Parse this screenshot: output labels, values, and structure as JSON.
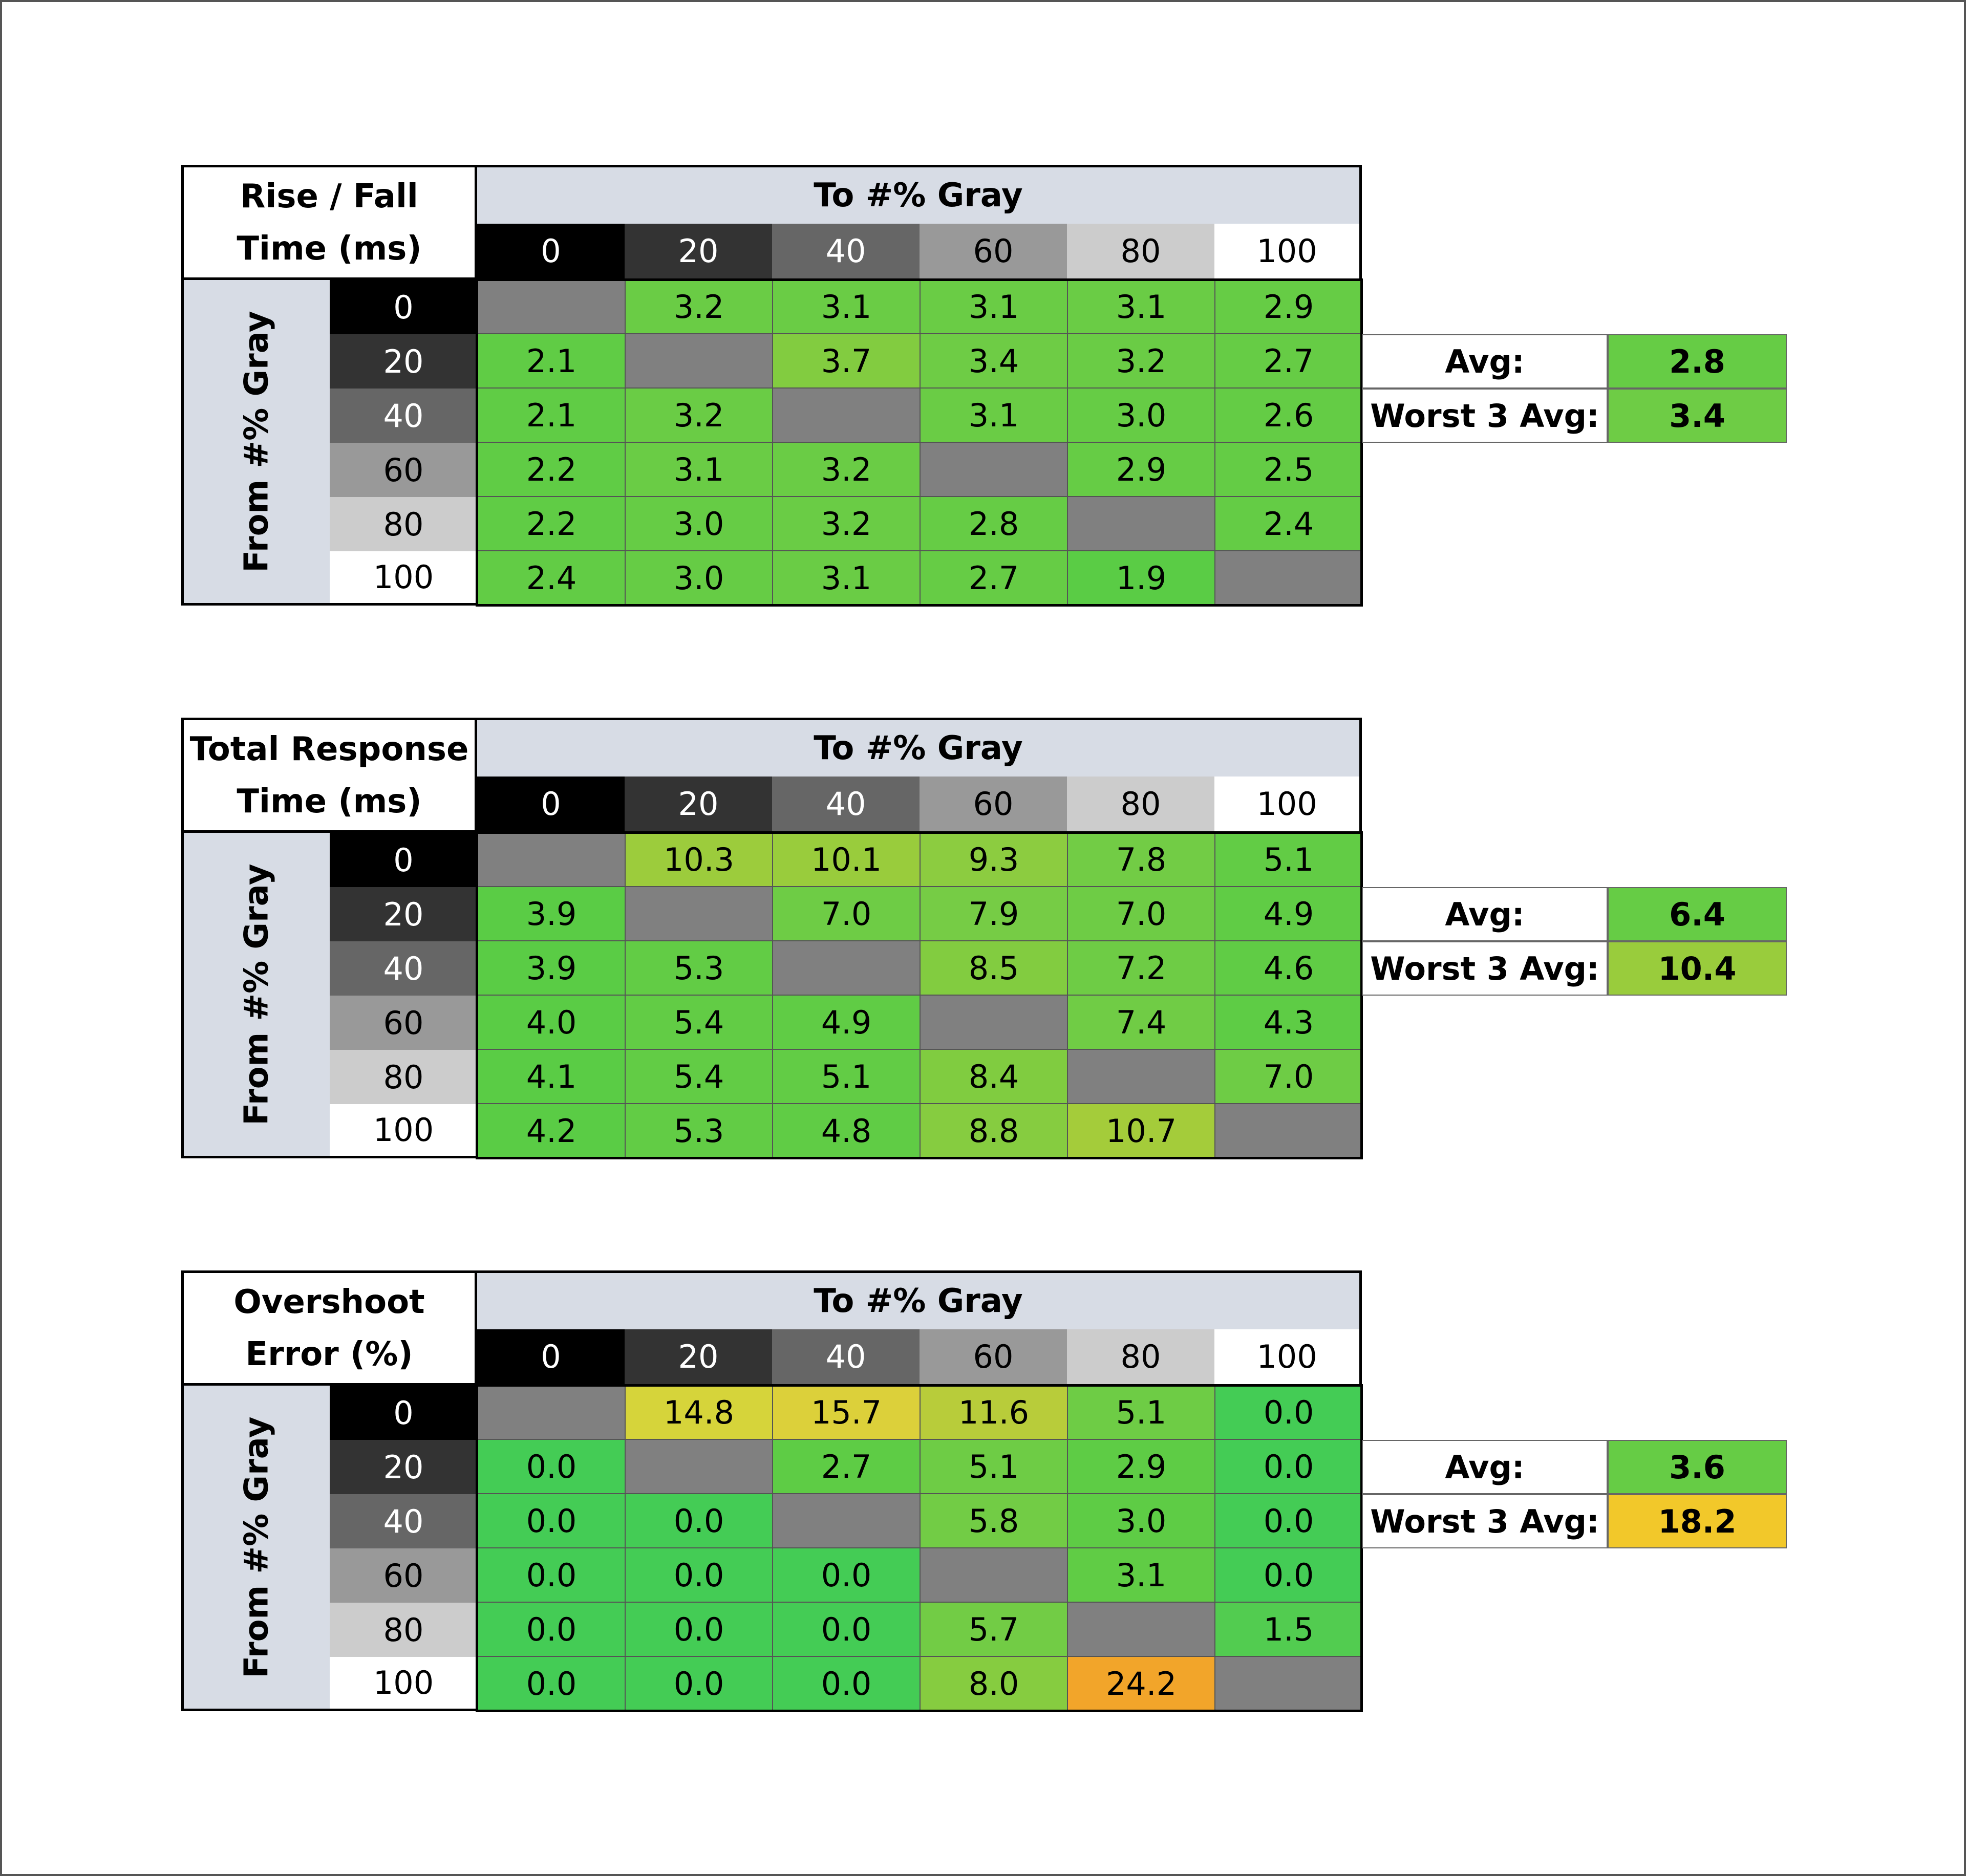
{
  "chart_data": [
    {
      "type": "table",
      "title_lines": [
        "Rise / Fall",
        "Time (ms)"
      ],
      "column_header": "To #% Gray",
      "row_header": "From #% Gray",
      "columns": [
        "0",
        "20",
        "40",
        "60",
        "80",
        "100"
      ],
      "rows": [
        "0",
        "20",
        "40",
        "60",
        "80",
        "100"
      ],
      "values": [
        [
          null,
          "3.2",
          "3.1",
          "3.1",
          "3.1",
          "2.9"
        ],
        [
          "2.1",
          null,
          "3.7",
          "3.4",
          "3.2",
          "2.7"
        ],
        [
          "2.1",
          "3.2",
          null,
          "3.1",
          "3.0",
          "2.6"
        ],
        [
          "2.2",
          "3.1",
          "3.2",
          null,
          "2.9",
          "2.5"
        ],
        [
          "2.2",
          "3.0",
          "3.2",
          "2.8",
          null,
          "2.4"
        ],
        [
          "2.4",
          "3.0",
          "3.1",
          "2.7",
          "1.9",
          null
        ]
      ],
      "colors": [
        [
          "#808080",
          "#6acc45",
          "#6acc45",
          "#6acc45",
          "#6acc45",
          "#66cc45"
        ],
        [
          "#60cc45",
          "#808080",
          "#82cc40",
          "#6ecc45",
          "#6acc45",
          "#66cc45"
        ],
        [
          "#60cc45",
          "#6acc45",
          "#808080",
          "#6acc45",
          "#66cc45",
          "#64cc45"
        ],
        [
          "#60cc45",
          "#6acc45",
          "#6acc45",
          "#808080",
          "#66cc45",
          "#64cc45"
        ],
        [
          "#60cc45",
          "#66cc45",
          "#6acc45",
          "#66cc45",
          "#808080",
          "#64cc45"
        ],
        [
          "#62cc45",
          "#66cc45",
          "#6acc45",
          "#66cc45",
          "#5acc45",
          "#808080"
        ]
      ],
      "summary": [
        {
          "label": "Avg:",
          "value": "2.8",
          "color": "#66cc45"
        },
        {
          "label": "Worst 3 Avg:",
          "value": "3.4",
          "color": "#6ecc45"
        }
      ]
    },
    {
      "type": "table",
      "title_lines": [
        "Total Response",
        "Time (ms)"
      ],
      "column_header": "To #% Gray",
      "row_header": "From #% Gray",
      "columns": [
        "0",
        "20",
        "40",
        "60",
        "80",
        "100"
      ],
      "rows": [
        "0",
        "20",
        "40",
        "60",
        "80",
        "100"
      ],
      "values": [
        [
          null,
          "10.3",
          "10.1",
          "9.3",
          "7.8",
          "5.1"
        ],
        [
          "3.9",
          null,
          "7.0",
          "7.9",
          "7.0",
          "4.9"
        ],
        [
          "3.9",
          "5.3",
          null,
          "8.5",
          "7.2",
          "4.6"
        ],
        [
          "4.0",
          "5.4",
          "4.9",
          null,
          "7.4",
          "4.3"
        ],
        [
          "4.1",
          "5.4",
          "5.1",
          "8.4",
          null,
          "7.0"
        ],
        [
          "4.2",
          "5.3",
          "4.8",
          "8.8",
          "10.7",
          null
        ]
      ],
      "colors": [
        [
          "#808080",
          "#9ccc3c",
          "#99cc3c",
          "#8ccc40",
          "#72cc45",
          "#62cc45"
        ],
        [
          "#5acc45",
          "#808080",
          "#6ecc45",
          "#76cc45",
          "#6ecc45",
          "#60cc45"
        ],
        [
          "#5acc45",
          "#62cc45",
          "#808080",
          "#82cc40",
          "#6ecc45",
          "#60cc45"
        ],
        [
          "#5acc45",
          "#62cc45",
          "#60cc45",
          "#808080",
          "#70cc45",
          "#5ecc45"
        ],
        [
          "#5acc45",
          "#62cc45",
          "#62cc45",
          "#80cc40",
          "#808080",
          "#6ecc45"
        ],
        [
          "#5acc45",
          "#62cc45",
          "#60cc45",
          "#86cc40",
          "#a4cc3a",
          "#808080"
        ]
      ],
      "summary": [
        {
          "label": "Avg:",
          "value": "6.4",
          "color": "#66cc45"
        },
        {
          "label": "Worst 3 Avg:",
          "value": "10.4",
          "color": "#99cc3c"
        }
      ]
    },
    {
      "type": "table",
      "title_lines": [
        "Overshoot",
        "Error (%)"
      ],
      "column_header": "To #% Gray",
      "row_header": "From #% Gray",
      "columns": [
        "0",
        "20",
        "40",
        "60",
        "80",
        "100"
      ],
      "rows": [
        "0",
        "20",
        "40",
        "60",
        "80",
        "100"
      ],
      "values": [
        [
          null,
          "14.8",
          "15.7",
          "11.6",
          "5.1",
          "0.0"
        ],
        [
          "0.0",
          null,
          "2.7",
          "5.1",
          "2.9",
          "0.0"
        ],
        [
          "0.0",
          "0.0",
          null,
          "5.8",
          "3.0",
          "0.0"
        ],
        [
          "0.0",
          "0.0",
          "0.0",
          null,
          "3.1",
          "0.0"
        ],
        [
          "0.0",
          "0.0",
          "0.0",
          "5.7",
          null,
          "1.5"
        ],
        [
          "0.0",
          "0.0",
          "0.0",
          "8.0",
          "24.2",
          null
        ]
      ],
      "colors": [
        [
          "#808080",
          "#d6d43a",
          "#dcd03a",
          "#b8cc3a",
          "#6ecc45",
          "#44cc55"
        ],
        [
          "#44cc55",
          "#808080",
          "#5ecc45",
          "#6ecc45",
          "#5ecc45",
          "#44cc55"
        ],
        [
          "#44cc55",
          "#44cc55",
          "#808080",
          "#72cc45",
          "#5ecc45",
          "#44cc55"
        ],
        [
          "#44cc55",
          "#44cc55",
          "#44cc55",
          "#808080",
          "#60cc45",
          "#44cc55"
        ],
        [
          "#44cc55",
          "#44cc55",
          "#44cc55",
          "#72cc45",
          "#808080",
          "#52cc50"
        ],
        [
          "#44cc55",
          "#44cc55",
          "#44cc55",
          "#86cc40",
          "#f2a52a",
          "#808080"
        ]
      ],
      "summary": [
        {
          "label": "Avg:",
          "value": "3.6",
          "color": "#66cc45"
        },
        {
          "label": "Worst 3 Avg:",
          "value": "18.2",
          "color": "#f2c82a"
        }
      ]
    }
  ],
  "header_colors": {
    "columns": [
      "#000000",
      "#333333",
      "#666666",
      "#999999",
      "#cccccc",
      "#ffffff"
    ],
    "text": [
      "#ffffff",
      "#ffffff",
      "#ffffff",
      "#000000",
      "#000000",
      "#000000"
    ]
  }
}
